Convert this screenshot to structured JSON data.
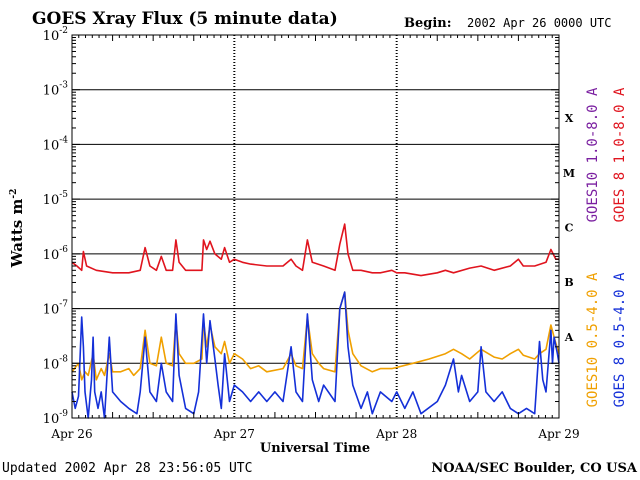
{
  "chart_data": {
    "type": "line",
    "title": "GOES Xray Flux (5 minute data)",
    "begin_label": "Begin:",
    "begin_value": "2002 Apr 26 0000 UTC",
    "ylabel_main": "Watts m",
    "ylabel_sup": "-2",
    "xlabel": "Universal Time",
    "yscale": "log",
    "ylim": [
      1e-09,
      0.01
    ],
    "yticks": [
      {
        "base": "10",
        "exp": "-2"
      },
      {
        "base": "10",
        "exp": "-3"
      },
      {
        "base": "10",
        "exp": "-4"
      },
      {
        "base": "10",
        "exp": "-5"
      },
      {
        "base": "10",
        "exp": "-6"
      },
      {
        "base": "10",
        "exp": "-7"
      },
      {
        "base": "10",
        "exp": "-8"
      },
      {
        "base": "10",
        "exp": "-9"
      }
    ],
    "xlim_days": [
      0,
      3
    ],
    "xticks": [
      "Apr 26",
      "Apr 27",
      "Apr 28",
      "Apr 29"
    ],
    "flare_classes": [
      "X",
      "M",
      "C",
      "B",
      "A"
    ],
    "grid": true,
    "legend_position": "right-vertical",
    "series": [
      {
        "name": "GOES10 1.0-8.0 A",
        "color": "#7a1fa0",
        "points": []
      },
      {
        "name": "GOES 8 1.0-8.0 A",
        "color": "#e0141e",
        "points": [
          [
            0.0,
            7e-07
          ],
          [
            0.03,
            6e-07
          ],
          [
            0.06,
            5e-07
          ],
          [
            0.07,
            1.1e-06
          ],
          [
            0.09,
            6e-07
          ],
          [
            0.15,
            5e-07
          ],
          [
            0.25,
            4.5e-07
          ],
          [
            0.35,
            4.5e-07
          ],
          [
            0.42,
            5e-07
          ],
          [
            0.45,
            1.3e-06
          ],
          [
            0.48,
            6e-07
          ],
          [
            0.52,
            5e-07
          ],
          [
            0.55,
            9e-07
          ],
          [
            0.58,
            5e-07
          ],
          [
            0.62,
            5e-07
          ],
          [
            0.64,
            1.8e-06
          ],
          [
            0.66,
            7e-07
          ],
          [
            0.7,
            5e-07
          ],
          [
            0.75,
            5e-07
          ],
          [
            0.8,
            5e-07
          ],
          [
            0.81,
            1.8e-06
          ],
          [
            0.83,
            1.2e-06
          ],
          [
            0.85,
            1.7e-06
          ],
          [
            0.88,
            1e-06
          ],
          [
            0.92,
            8e-07
          ],
          [
            0.94,
            1.3e-06
          ],
          [
            0.97,
            7e-07
          ],
          [
            1.0,
            8e-07
          ],
          [
            1.05,
            7e-07
          ],
          [
            1.1,
            6.5e-07
          ],
          [
            1.2,
            6e-07
          ],
          [
            1.3,
            6e-07
          ],
          [
            1.35,
            8e-07
          ],
          [
            1.38,
            6e-07
          ],
          [
            1.42,
            5e-07
          ],
          [
            1.45,
            1.8e-06
          ],
          [
            1.48,
            7e-07
          ],
          [
            1.55,
            6e-07
          ],
          [
            1.62,
            5e-07
          ],
          [
            1.65,
            1.5e-06
          ],
          [
            1.68,
            3.5e-06
          ],
          [
            1.7,
            1e-06
          ],
          [
            1.73,
            5e-07
          ],
          [
            1.78,
            5e-07
          ],
          [
            1.85,
            4.5e-07
          ],
          [
            1.9,
            4.5e-07
          ],
          [
            1.97,
            5e-07
          ],
          [
            2.0,
            4.5e-07
          ],
          [
            2.05,
            4.5e-07
          ],
          [
            2.15,
            4e-07
          ],
          [
            2.25,
            4.5e-07
          ],
          [
            2.3,
            5e-07
          ],
          [
            2.35,
            4.5e-07
          ],
          [
            2.45,
            5.5e-07
          ],
          [
            2.52,
            6e-07
          ],
          [
            2.6,
            5e-07
          ],
          [
            2.7,
            6e-07
          ],
          [
            2.75,
            8e-07
          ],
          [
            2.78,
            6e-07
          ],
          [
            2.85,
            6e-07
          ],
          [
            2.92,
            7e-07
          ],
          [
            2.95,
            1.2e-06
          ],
          [
            2.98,
            8e-07
          ],
          [
            3.0,
            8e-07
          ]
        ]
      },
      {
        "name": "GOES10 0.5-4.0 A",
        "color": "#f0a000",
        "points": [
          [
            0.0,
            7e-09
          ],
          [
            0.04,
            1e-08
          ],
          [
            0.06,
            5e-09
          ],
          [
            0.08,
            7e-09
          ],
          [
            0.1,
            6e-09
          ],
          [
            0.13,
            1.5e-08
          ],
          [
            0.15,
            5e-09
          ],
          [
            0.18,
            8e-09
          ],
          [
            0.2,
            6e-09
          ],
          [
            0.23,
            1.5e-08
          ],
          [
            0.25,
            7e-09
          ],
          [
            0.3,
            7e-09
          ],
          [
            0.35,
            8e-09
          ],
          [
            0.38,
            6e-09
          ],
          [
            0.42,
            8e-09
          ],
          [
            0.45,
            4e-08
          ],
          [
            0.48,
            1e-08
          ],
          [
            0.52,
            9e-09
          ],
          [
            0.55,
            3e-08
          ],
          [
            0.58,
            1e-08
          ],
          [
            0.62,
            9e-09
          ],
          [
            0.64,
            6e-08
          ],
          [
            0.66,
            1.5e-08
          ],
          [
            0.7,
            1e-08
          ],
          [
            0.75,
            1e-08
          ],
          [
            0.8,
            1.2e-08
          ],
          [
            0.81,
            6e-08
          ],
          [
            0.83,
            2e-08
          ],
          [
            0.85,
            5e-08
          ],
          [
            0.88,
            2e-08
          ],
          [
            0.92,
            1.5e-08
          ],
          [
            0.94,
            2.5e-08
          ],
          [
            0.97,
            1e-08
          ],
          [
            1.0,
            1.5e-08
          ],
          [
            1.05,
            1.2e-08
          ],
          [
            1.1,
            8e-09
          ],
          [
            1.15,
            9e-09
          ],
          [
            1.2,
            7e-09
          ],
          [
            1.3,
            8e-09
          ],
          [
            1.35,
            1.5e-08
          ],
          [
            1.38,
            9e-09
          ],
          [
            1.42,
            8e-09
          ],
          [
            1.45,
            7e-08
          ],
          [
            1.48,
            1.5e-08
          ],
          [
            1.52,
            1e-08
          ],
          [
            1.55,
            8e-09
          ],
          [
            1.62,
            7e-09
          ],
          [
            1.65,
            1e-07
          ],
          [
            1.68,
            2e-07
          ],
          [
            1.7,
            4e-08
          ],
          [
            1.73,
            1.5e-08
          ],
          [
            1.78,
            9e-09
          ],
          [
            1.85,
            7e-09
          ],
          [
            1.9,
            8e-09
          ],
          [
            1.97,
            8e-09
          ],
          [
            2.1,
            1e-08
          ],
          [
            2.2,
            1.2e-08
          ],
          [
            2.3,
            1.5e-08
          ],
          [
            2.35,
            1.8e-08
          ],
          [
            2.4,
            1.5e-08
          ],
          [
            2.45,
            1.2e-08
          ],
          [
            2.52,
            1.8e-08
          ],
          [
            2.6,
            1.3e-08
          ],
          [
            2.65,
            1.2e-08
          ],
          [
            2.7,
            1.5e-08
          ],
          [
            2.75,
            1.8e-08
          ],
          [
            2.78,
            1.4e-08
          ],
          [
            2.85,
            1.2e-08
          ],
          [
            2.88,
            1.5e-08
          ],
          [
            2.92,
            1.8e-08
          ],
          [
            2.95,
            5e-08
          ],
          [
            2.97,
            3e-08
          ],
          [
            3.0,
            1.5e-08
          ]
        ]
      },
      {
        "name": "GOES 8 0.5-4.0 A",
        "color": "#1430d8",
        "points": [
          [
            0.0,
            3e-09
          ],
          [
            0.02,
            1.5e-09
          ],
          [
            0.04,
            2.5e-09
          ],
          [
            0.06,
            7e-08
          ],
          [
            0.07,
            2e-08
          ],
          [
            0.08,
            3e-09
          ],
          [
            0.1,
            1e-09
          ],
          [
            0.12,
            5e-09
          ],
          [
            0.13,
            3e-08
          ],
          [
            0.14,
            3e-09
          ],
          [
            0.16,
            1.5e-09
          ],
          [
            0.18,
            3e-09
          ],
          [
            0.2,
            1e-09
          ],
          [
            0.23,
            3e-08
          ],
          [
            0.25,
            3e-09
          ],
          [
            0.3,
            2e-09
          ],
          [
            0.35,
            1.5e-09
          ],
          [
            0.4,
            1.2e-09
          ],
          [
            0.42,
            3e-09
          ],
          [
            0.45,
            3e-08
          ],
          [
            0.48,
            3e-09
          ],
          [
            0.52,
            2e-09
          ],
          [
            0.55,
            1e-08
          ],
          [
            0.58,
            3e-09
          ],
          [
            0.62,
            2e-09
          ],
          [
            0.64,
            8e-08
          ],
          [
            0.66,
            6e-09
          ],
          [
            0.7,
            1.5e-09
          ],
          [
            0.75,
            1.2e-09
          ],
          [
            0.78,
            3e-09
          ],
          [
            0.81,
            8e-08
          ],
          [
            0.83,
            1e-08
          ],
          [
            0.85,
            6e-08
          ],
          [
            0.88,
            1.2e-08
          ],
          [
            0.9,
            4e-09
          ],
          [
            0.92,
            1.5e-09
          ],
          [
            0.94,
            1.5e-08
          ],
          [
            0.97,
            2e-09
          ],
          [
            1.0,
            4e-09
          ],
          [
            1.05,
            3e-09
          ],
          [
            1.1,
            2e-09
          ],
          [
            1.15,
            3e-09
          ],
          [
            1.2,
            2e-09
          ],
          [
            1.25,
            3e-09
          ],
          [
            1.3,
            2e-09
          ],
          [
            1.35,
            2e-08
          ],
          [
            1.38,
            3e-09
          ],
          [
            1.42,
            2e-09
          ],
          [
            1.45,
            8e-08
          ],
          [
            1.48,
            5e-09
          ],
          [
            1.52,
            2e-09
          ],
          [
            1.55,
            4e-09
          ],
          [
            1.62,
            2e-09
          ],
          [
            1.65,
            1e-07
          ],
          [
            1.68,
            2e-07
          ],
          [
            1.7,
            2e-08
          ],
          [
            1.73,
            4e-09
          ],
          [
            1.78,
            1.5e-09
          ],
          [
            1.82,
            3e-09
          ],
          [
            1.85,
            1.2e-09
          ],
          [
            1.9,
            3e-09
          ],
          [
            1.97,
            2e-09
          ],
          [
            2.0,
            3e-09
          ],
          [
            2.05,
            1.5e-09
          ],
          [
            2.1,
            3e-09
          ],
          [
            2.15,
            1.2e-09
          ],
          [
            2.25,
            2e-09
          ],
          [
            2.3,
            4e-09
          ],
          [
            2.35,
            1.2e-08
          ],
          [
            2.38,
            3e-09
          ],
          [
            2.4,
            6e-09
          ],
          [
            2.45,
            2e-09
          ],
          [
            2.5,
            3e-09
          ],
          [
            2.52,
            2e-08
          ],
          [
            2.55,
            3e-09
          ],
          [
            2.6,
            2e-09
          ],
          [
            2.65,
            3e-09
          ],
          [
            2.7,
            1.5e-09
          ],
          [
            2.75,
            1.2e-09
          ],
          [
            2.8,
            1.5e-09
          ],
          [
            2.85,
            1.2e-09
          ],
          [
            2.88,
            2.5e-08
          ],
          [
            2.9,
            5e-09
          ],
          [
            2.92,
            3e-09
          ],
          [
            2.95,
            4e-08
          ],
          [
            2.96,
            1e-08
          ],
          [
            2.97,
            3e-08
          ],
          [
            2.99,
            1.5e-08
          ],
          [
            3.0,
            1e-08
          ]
        ]
      }
    ]
  },
  "footer": {
    "updated": "Updated 2002 Apr 28 23:56:05 UTC",
    "source": "NOAA/SEC Boulder, CO USA"
  }
}
